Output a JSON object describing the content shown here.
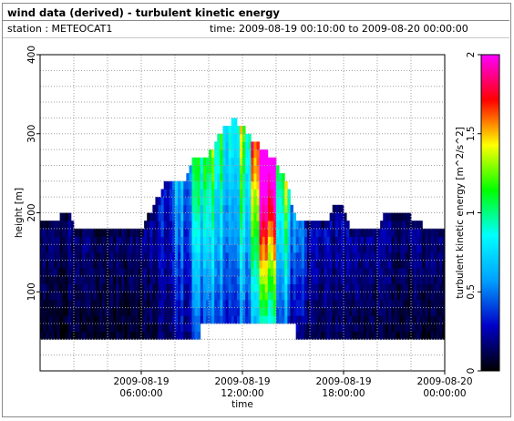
{
  "header": {
    "title": "wind data (derived) - turbulent kinetic energy",
    "station": "station : METEOCAT1",
    "time_range": "time: 2009-08-19 00:10:00 to 2009-08-20 00:00:00"
  },
  "chart_data": {
    "type": "heatmap",
    "xlabel": "time",
    "ylabel": "height [m]",
    "colorbar_label": "turbulent kinetic energy [m^2/s^2]",
    "x_ticks": [
      {
        "hour": 6,
        "line1": "2009-08-19",
        "line2": "06:00:00"
      },
      {
        "hour": 12,
        "line1": "2009-08-19",
        "line2": "12:00:00"
      },
      {
        "hour": 18,
        "line1": "2009-08-19",
        "line2": "18:00:00"
      },
      {
        "hour": 24,
        "line1": "2009-08-20",
        "line2": "00:00:00"
      }
    ],
    "xlim_hours": [
      0,
      24
    ],
    "y_ticks": [
      100,
      200,
      300,
      400
    ],
    "ylim": [
      0,
      400
    ],
    "colorbar_ticks": [
      "0",
      "0.5",
      "1",
      "1.5",
      "2"
    ],
    "colorbar_range": [
      0,
      2
    ],
    "grid": true,
    "colormap": [
      "#000000",
      "#0000c8",
      "#00a0ff",
      "#00ffff",
      "#00ff00",
      "#ffff00",
      "#ff0000",
      "#ff00ff"
    ],
    "approx_profile_top_m": [
      {
        "hour": 0.0,
        "top": 190
      },
      {
        "hour": 1.0,
        "top": 190
      },
      {
        "hour": 1.2,
        "top": 200
      },
      {
        "hour": 1.7,
        "top": 200
      },
      {
        "hour": 2.1,
        "top": 175
      },
      {
        "hour": 5.8,
        "top": 175
      },
      {
        "hour": 6.4,
        "top": 195
      },
      {
        "hour": 7.0,
        "top": 220
      },
      {
        "hour": 7.5,
        "top": 240
      },
      {
        "hour": 8.5,
        "top": 240
      },
      {
        "hour": 9.0,
        "top": 265
      },
      {
        "hour": 10.0,
        "top": 275
      },
      {
        "hour": 10.8,
        "top": 305
      },
      {
        "hour": 11.5,
        "top": 320
      },
      {
        "hour": 12.0,
        "top": 310
      },
      {
        "hour": 12.5,
        "top": 295
      },
      {
        "hour": 13.3,
        "top": 280
      },
      {
        "hour": 14.0,
        "top": 265
      },
      {
        "hour": 14.6,
        "top": 240
      },
      {
        "hour": 15.2,
        "top": 190
      },
      {
        "hour": 17.0,
        "top": 190
      },
      {
        "hour": 17.4,
        "top": 205
      },
      {
        "hour": 18.0,
        "top": 205
      },
      {
        "hour": 18.4,
        "top": 180
      },
      {
        "hour": 20.0,
        "top": 180
      },
      {
        "hour": 20.4,
        "top": 195
      },
      {
        "hour": 21.4,
        "top": 205
      },
      {
        "hour": 22.0,
        "top": 195
      },
      {
        "hour": 23.0,
        "top": 180
      },
      {
        "hour": 24.0,
        "top": 180
      }
    ],
    "approx_intensity_by_hour": [
      {
        "hour": 0,
        "value": 0.12
      },
      {
        "hour": 6,
        "value": 0.12
      },
      {
        "hour": 8,
        "value": 0.35
      },
      {
        "hour": 9,
        "value": 0.55
      },
      {
        "hour": 10,
        "value": 0.8
      },
      {
        "hour": 11,
        "value": 0.75
      },
      {
        "hour": 12,
        "value": 0.9
      },
      {
        "hour": 13,
        "value": 1.25
      },
      {
        "hour": 13.8,
        "value": 1.4
      },
      {
        "hour": 14.5,
        "value": 0.9
      },
      {
        "hour": 15,
        "value": 0.55
      },
      {
        "hour": 16,
        "value": 0.2
      },
      {
        "hour": 24,
        "value": 0.12
      }
    ]
  }
}
